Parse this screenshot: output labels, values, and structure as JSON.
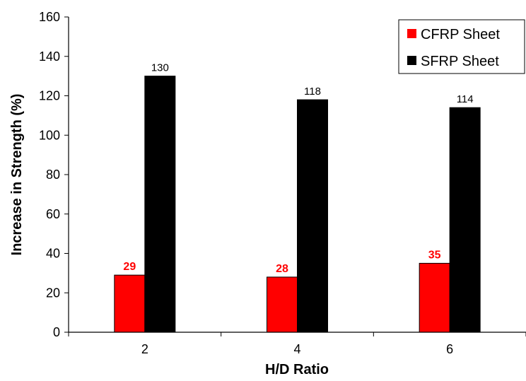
{
  "chart_data": {
    "type": "bar",
    "categories": [
      "2",
      "4",
      "6"
    ],
    "series": [
      {
        "name": "CFRP Sheet",
        "values": [
          29,
          28,
          35
        ],
        "color": "#ff0000",
        "label_color": "#ff0000"
      },
      {
        "name": "SFRP Sheet",
        "values": [
          130,
          118,
          114
        ],
        "color": "#000000",
        "label_color": "#000000"
      }
    ],
    "title": "",
    "xlabel": "H/D Ratio",
    "ylabel": "Increase in Strength (%)",
    "ylim": [
      0,
      160
    ],
    "yticks": [
      0,
      20,
      40,
      60,
      80,
      100,
      120,
      140,
      160
    ],
    "grid": false,
    "legend_position": "top-right",
    "data_labels": true
  }
}
